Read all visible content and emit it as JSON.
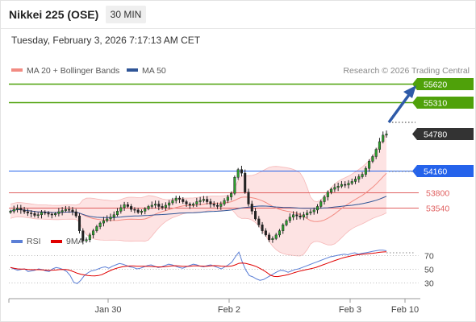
{
  "header": {
    "title": "Nikkei 225 (OSE)",
    "timeframe": "30 MIN"
  },
  "datetime": "Tuesday, February 3, 2026 7:17:13 AM CET",
  "legend": {
    "items": [
      {
        "label": "MA 20 + Bollinger Bands",
        "color": "#f28b82"
      },
      {
        "label": "MA 50",
        "color": "#2f5597"
      }
    ],
    "credit": "Research © 2026 Trading Central"
  },
  "chart_data": [
    {
      "type": "line",
      "title": "",
      "x_ticks": [
        "Jan 30",
        "Feb 2",
        "Feb 3",
        "Feb 10"
      ],
      "ylim": [
        53200,
        55720
      ],
      "price_levels": [
        {
          "value": 55620,
          "label": "55620",
          "color": "#4fa10a",
          "kind": "target"
        },
        {
          "value": 55310,
          "label": "55310",
          "color": "#4fa10a",
          "kind": "target"
        },
        {
          "value": 54780,
          "label": "54780",
          "color": "#333333",
          "kind": "last"
        },
        {
          "value": 54160,
          "label": "54160",
          "color": "#2563eb",
          "kind": "pivot"
        },
        {
          "value": 53800,
          "label": "53800",
          "color": "#e06060",
          "kind": "support"
        },
        {
          "value": 53540,
          "label": "53540",
          "color": "#e06060",
          "kind": "support"
        }
      ],
      "series": [
        {
          "name": "MA 20 + Bollinger Bands",
          "color": "#f28b82"
        },
        {
          "name": "MA 50",
          "color": "#2f5597"
        }
      ],
      "close_sequence": [
        53480,
        53510,
        53530,
        53500,
        53470,
        53450,
        53440,
        53410,
        53420,
        53460,
        53450,
        53430,
        53420,
        53440,
        53470,
        53490,
        53510,
        53500,
        53470,
        53400,
        53150,
        52980,
        53000,
        53080,
        53150,
        53220,
        53280,
        53320,
        53350,
        53380,
        53420,
        53480,
        53540,
        53590,
        53560,
        53510,
        53500,
        53460,
        53480,
        53520,
        53560,
        53580,
        53600,
        53560,
        53540,
        53580,
        53620,
        53660,
        53700,
        53680,
        53640,
        53600,
        53580,
        53600,
        53640,
        53660,
        53680,
        53640,
        53600,
        53580,
        53560,
        53600,
        53660,
        53720,
        53780,
        54050,
        54180,
        54120,
        53800,
        53600,
        53480,
        53350,
        53250,
        53150,
        53080,
        53000,
        53020,
        53080,
        53150,
        53250,
        53320,
        53380,
        53420,
        53400,
        53380,
        53420,
        53450,
        53470,
        53500,
        53560,
        53640,
        53720,
        53800,
        53850,
        53880,
        53900,
        53930,
        53920,
        53950,
        53980,
        54020,
        54060,
        54100,
        54200,
        54320,
        54400,
        54520,
        54650,
        54760,
        54780
      ]
    },
    {
      "type": "line",
      "series": [
        {
          "name": "RSI",
          "color": "#5b7fd6"
        },
        {
          "name": "9MA",
          "color": "#e00000"
        }
      ],
      "ylim": [
        20,
        80
      ],
      "y_ticks": [
        70,
        50,
        30
      ],
      "rsi_values": [
        52,
        50,
        48,
        49,
        50,
        46,
        47,
        48,
        50,
        49,
        47,
        46,
        50,
        52,
        51,
        49,
        46,
        40,
        30,
        28,
        33,
        40,
        44,
        47,
        48,
        50,
        52,
        53,
        51,
        54,
        56,
        58,
        57,
        55,
        53,
        52,
        50,
        51,
        53,
        55,
        56,
        54,
        52,
        53,
        55,
        57,
        56,
        54,
        52,
        51,
        53,
        55,
        57,
        56,
        54,
        53,
        55,
        56,
        54,
        52,
        50,
        53,
        56,
        60,
        68,
        75,
        60,
        48,
        40,
        38,
        35,
        33,
        34,
        37,
        40,
        43,
        46,
        48,
        47,
        45,
        47,
        49,
        50,
        52,
        54,
        56,
        58,
        60,
        62,
        64,
        66,
        68,
        69,
        70,
        71,
        72,
        71,
        73,
        74,
        72,
        73,
        74,
        75,
        76,
        77,
        78,
        78,
        77
      ]
    }
  ]
}
